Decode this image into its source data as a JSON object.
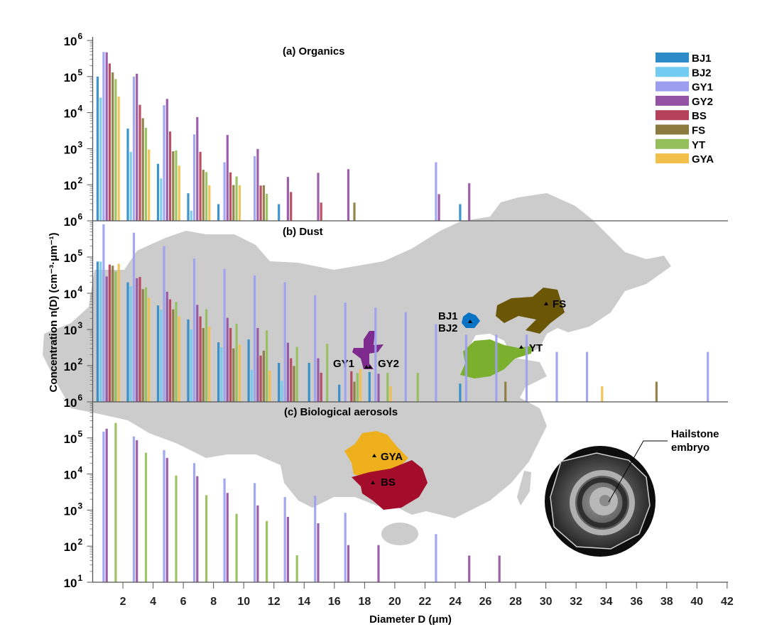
{
  "legend": {
    "position": "top-right",
    "items": [
      {
        "name": "BJ1",
        "color": "#2e8bc9"
      },
      {
        "name": "BJ2",
        "color": "#72cbf0"
      },
      {
        "name": "GY1",
        "color": "#9c9ff0"
      },
      {
        "name": "GY2",
        "color": "#9452a4"
      },
      {
        "name": "BS",
        "color": "#b5405a"
      },
      {
        "name": "FS",
        "color": "#8b7a3d"
      },
      {
        "name": "YT",
        "color": "#94bf5a"
      },
      {
        "name": "GYA",
        "color": "#f2c04a"
      }
    ]
  },
  "xlabel": "Diameter D (μm)",
  "ylabel": "Concentration n(D) (cm⁻³·μm⁻¹)",
  "xticks": [
    2,
    4,
    6,
    8,
    10,
    12,
    14,
    16,
    18,
    20,
    22,
    24,
    26,
    28,
    30,
    32,
    34,
    36,
    38,
    40,
    42
  ],
  "map": {
    "land_color": "#cccccc",
    "sites": [
      {
        "label": "BJ1",
        "color": "#0a74c4"
      },
      {
        "label": "BJ2",
        "color": "#0a74c4"
      },
      {
        "label": "FS",
        "color": "#6b5606"
      },
      {
        "label": "YT",
        "color": "#7bb02e"
      },
      {
        "label": "GY1",
        "color": "#7e2a8e"
      },
      {
        "label": "GY2",
        "color": "#7e2a8e"
      },
      {
        "label": "GYA",
        "color": "#eeb01c"
      },
      {
        "label": "BS",
        "color": "#a30c2b"
      }
    ]
  },
  "inset": {
    "label_line1": "Hailstone",
    "label_line2": "embryo"
  },
  "chart_data": [
    {
      "type": "bar",
      "title": "(a) Organics",
      "yscale": "log",
      "ylim": [
        10,
        1000000
      ],
      "xlim": [
        0,
        42
      ],
      "x": [
        1,
        3,
        5,
        7,
        9,
        11,
        13,
        15,
        17,
        19,
        21,
        23,
        25,
        27,
        29,
        31,
        33,
        35,
        37,
        39,
        41
      ],
      "series": [
        {
          "name": "BJ1",
          "values": [
            100000,
            3600,
            380,
            58,
            29,
            null,
            29,
            null,
            null,
            null,
            null,
            null,
            29,
            null,
            null,
            null,
            null,
            null,
            null,
            null,
            null
          ]
        },
        {
          "name": "BJ2",
          "values": [
            26000,
            820,
            150,
            19,
            null,
            null,
            null,
            null,
            null,
            null,
            null,
            null,
            null,
            null,
            null,
            null,
            null,
            null,
            null,
            null,
            null
          ]
        },
        {
          "name": "GY1",
          "values": [
            480000,
            100000,
            16000,
            2500,
            420,
            620,
            null,
            null,
            null,
            null,
            null,
            420,
            null,
            null,
            null,
            null,
            null,
            null,
            null,
            null,
            null
          ]
        },
        {
          "name": "GY2",
          "values": [
            470000,
            120000,
            24000,
            7500,
            2400,
            980,
            165,
            215,
            270,
            null,
            null,
            55,
            110,
            null,
            null,
            null,
            null,
            null,
            null,
            null,
            null
          ]
        },
        {
          "name": "BS",
          "values": [
            230000,
            16500,
            3000,
            820,
            220,
            95,
            63,
            32,
            null,
            null,
            null,
            null,
            null,
            null,
            null,
            null,
            null,
            null,
            null,
            null,
            null
          ]
        },
        {
          "name": "FS",
          "values": [
            130000,
            7000,
            850,
            260,
            98,
            97,
            null,
            null,
            32,
            null,
            null,
            null,
            null,
            null,
            null,
            null,
            null,
            null,
            null,
            null,
            null
          ]
        },
        {
          "name": "YT",
          "values": [
            85000,
            3800,
            900,
            225,
            170,
            56,
            null,
            null,
            null,
            null,
            null,
            null,
            null,
            null,
            null,
            null,
            null,
            null,
            null,
            null,
            null
          ]
        },
        {
          "name": "GYA",
          "values": [
            28000,
            950,
            340,
            97,
            97,
            null,
            null,
            null,
            null,
            null,
            null,
            null,
            null,
            null,
            null,
            null,
            null,
            null,
            null,
            null,
            null
          ]
        }
      ]
    },
    {
      "type": "bar",
      "title": "(b) Dust",
      "yscale": "log",
      "ylim": [
        10,
        1000000
      ],
      "xlim": [
        0,
        42
      ],
      "x": [
        1,
        3,
        5,
        7,
        9,
        11,
        13,
        15,
        17,
        19,
        21,
        23,
        25,
        27,
        29,
        31,
        33,
        35,
        37,
        39,
        41
      ],
      "series": [
        {
          "name": "BJ1",
          "values": [
            75000,
            20000,
            4600,
            1900,
            440,
            530,
            120,
            120,
            30,
            67,
            null,
            null,
            32,
            null,
            null,
            null,
            null,
            null,
            null,
            null,
            null
          ]
        },
        {
          "name": "BJ2",
          "values": [
            75000,
            15500,
            3500,
            1000,
            320,
            77,
            38,
            null,
            null,
            null,
            null,
            null,
            null,
            null,
            null,
            null,
            null,
            null,
            null,
            null,
            null
          ]
        },
        {
          "name": "GY1",
          "values": [
            800000,
            470000,
            200000,
            90000,
            47000,
            31000,
            20000,
            8800,
            5500,
            4000,
            3000,
            1400,
            720,
            720,
            720,
            240,
            240,
            null,
            null,
            null,
            240
          ]
        },
        {
          "name": "GY2",
          "values": [
            29000,
            26000,
            11000,
            4800,
            2100,
            1100,
            430,
            160,
            null,
            60,
            null,
            null,
            null,
            null,
            null,
            null,
            null,
            null,
            null,
            null,
            null
          ]
        },
        {
          "name": "BS",
          "values": [
            62000,
            28000,
            6800,
            2300,
            1100,
            190,
            160,
            64,
            70,
            null,
            null,
            null,
            null,
            null,
            null,
            null,
            null,
            null,
            null,
            null,
            null
          ]
        },
        {
          "name": "FS",
          "values": [
            58000,
            13000,
            3600,
            1100,
            300,
            260,
            98,
            null,
            36,
            null,
            null,
            null,
            null,
            36,
            null,
            null,
            null,
            null,
            36,
            null,
            null
          ]
        },
        {
          "name": "YT",
          "values": [
            40000,
            14500,
            5800,
            3600,
            1450,
            940,
            330,
            400,
            63,
            63,
            63,
            null,
            null,
            null,
            null,
            null,
            null,
            null,
            null,
            null,
            null
          ]
        },
        {
          "name": "GYA",
          "values": [
            65000,
            7500,
            2300,
            1200,
            390,
            73,
            null,
            null,
            80,
            27,
            null,
            null,
            null,
            null,
            null,
            null,
            27,
            null,
            null,
            null,
            null
          ]
        }
      ]
    },
    {
      "type": "bar",
      "title": "(c) Biological aerosols",
      "yscale": "log",
      "ylim": [
        10,
        1000000
      ],
      "xlim": [
        0,
        42
      ],
      "x": [
        1,
        3,
        5,
        7,
        9,
        11,
        13,
        15,
        17,
        19,
        21,
        23,
        25,
        27,
        29,
        31,
        33,
        35,
        37,
        39,
        41
      ],
      "series": [
        {
          "name": "GY1",
          "values": [
            150000,
            110000,
            46000,
            20000,
            7500,
            5600,
            2300,
            2500,
            840,
            null,
            null,
            215,
            null,
            null,
            null,
            null,
            null,
            null,
            null,
            null,
            null
          ]
        },
        {
          "name": "GY2",
          "values": [
            180000,
            87000,
            28000,
            8700,
            3000,
            1350,
            650,
            430,
            107,
            107,
            null,
            null,
            55,
            55,
            null,
            null,
            null,
            null,
            null,
            null,
            null
          ]
        },
        {
          "name": "YT",
          "values": [
            260000,
            39000,
            9100,
            2600,
            790,
            500,
            56,
            null,
            null,
            null,
            null,
            null,
            null,
            null,
            null,
            null,
            null,
            null,
            null,
            null,
            null
          ]
        }
      ]
    }
  ]
}
